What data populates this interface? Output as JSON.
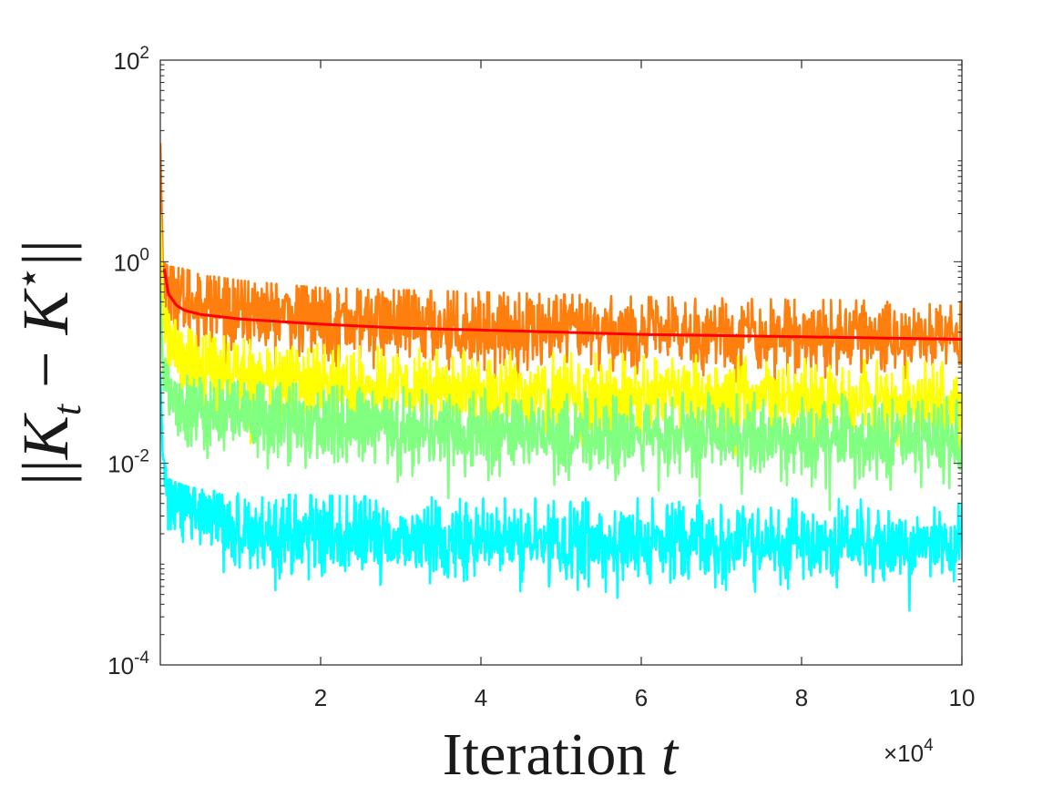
{
  "chart_data": {
    "type": "line",
    "title": "",
    "xlabel": "Iteration t",
    "ylabel": "||K_t − K*||",
    "x_multiplier_label": "×10^4",
    "xlim": [
      0,
      100000
    ],
    "ylim": [
      0.0001,
      100
    ],
    "yscale": "log",
    "grid": false,
    "legend": "none",
    "x_ticks": [
      20000,
      40000,
      60000,
      80000,
      100000
    ],
    "x_tick_labels": [
      "2",
      "4",
      "6",
      "8",
      "10"
    ],
    "y_ticks": [
      0.0001,
      0.01,
      1,
      100
    ],
    "y_tick_labels": [
      {
        "base": "10",
        "exp": "-4"
      },
      {
        "base": "10",
        "exp": "-2"
      },
      {
        "base": "10",
        "exp": "0"
      },
      {
        "base": "10",
        "exp": "2"
      }
    ],
    "series": [
      {
        "color": "#ff7f0e",
        "style": "noisy",
        "x": [
          0,
          300,
          1000,
          3000,
          5000,
          10000,
          20000,
          40000,
          60000,
          80000,
          100000
        ],
        "values": [
          15,
          1.0,
          0.55,
          0.42,
          0.38,
          0.33,
          0.27,
          0.22,
          0.2,
          0.19,
          0.18
        ],
        "min_envelope": [
          0.06,
          0.06,
          0.05,
          0.05,
          0.05,
          0.05,
          0.04,
          0.04,
          0.04,
          0.04,
          0.04
        ],
        "max_envelope": [
          15,
          1.0,
          0.9,
          0.85,
          0.75,
          0.65,
          0.55,
          0.5,
          0.45,
          0.42,
          0.4
        ]
      },
      {
        "color": "#ffff00",
        "style": "noisy",
        "x": [
          0,
          300,
          1000,
          3000,
          5000,
          10000,
          20000,
          40000,
          60000,
          80000,
          100000
        ],
        "values": [
          3,
          0.4,
          0.18,
          0.11,
          0.09,
          0.075,
          0.06,
          0.05,
          0.045,
          0.04,
          0.04
        ],
        "min_envelope": [
          0.02,
          0.02,
          0.015,
          0.015,
          0.015,
          0.015,
          0.013,
          0.012,
          0.012,
          0.012,
          0.012
        ],
        "max_envelope": [
          3,
          0.45,
          0.3,
          0.22,
          0.2,
          0.17,
          0.15,
          0.13,
          0.12,
          0.11,
          0.1
        ]
      },
      {
        "color": "#80ff80",
        "style": "noisy",
        "x": [
          0,
          300,
          1000,
          3000,
          5000,
          10000,
          20000,
          40000,
          60000,
          80000,
          100000
        ],
        "values": [
          0.6,
          0.1,
          0.055,
          0.038,
          0.032,
          0.028,
          0.024,
          0.02,
          0.018,
          0.017,
          0.016
        ],
        "min_envelope": [
          0.006,
          0.006,
          0.005,
          0.004,
          0.004,
          0.004,
          0.004,
          0.003,
          0.003,
          0.003,
          0.003
        ],
        "max_envelope": [
          0.6,
          0.13,
          0.09,
          0.075,
          0.07,
          0.065,
          0.06,
          0.055,
          0.05,
          0.05,
          0.045
        ]
      },
      {
        "color": "#00ffff",
        "style": "noisy",
        "x": [
          0,
          300,
          1000,
          3000,
          5000,
          10000,
          20000,
          40000,
          60000,
          80000,
          100000
        ],
        "values": [
          0.08,
          0.012,
          0.005,
          0.0035,
          0.0028,
          0.0022,
          0.0019,
          0.0017,
          0.0016,
          0.0015,
          0.0015
        ],
        "min_envelope": [
          0.0008,
          0.0008,
          0.0007,
          0.0006,
          0.0006,
          0.0006,
          0.0005,
          0.0004,
          0.0003,
          0.0003,
          0.0003
        ],
        "max_envelope": [
          0.08,
          0.012,
          0.007,
          0.006,
          0.0055,
          0.005,
          0.0048,
          0.0045,
          0.0045,
          0.0045,
          0.0042
        ]
      },
      {
        "color": "#ff0000",
        "style": "smooth",
        "x": [
          500,
          1000,
          2000,
          3000,
          5000,
          10000,
          20000,
          30000,
          40000,
          50000,
          60000,
          70000,
          80000,
          90000,
          100000
        ],
        "values": [
          0.85,
          0.48,
          0.37,
          0.33,
          0.3,
          0.27,
          0.24,
          0.22,
          0.21,
          0.2,
          0.19,
          0.185,
          0.18,
          0.175,
          0.17
        ]
      }
    ]
  }
}
